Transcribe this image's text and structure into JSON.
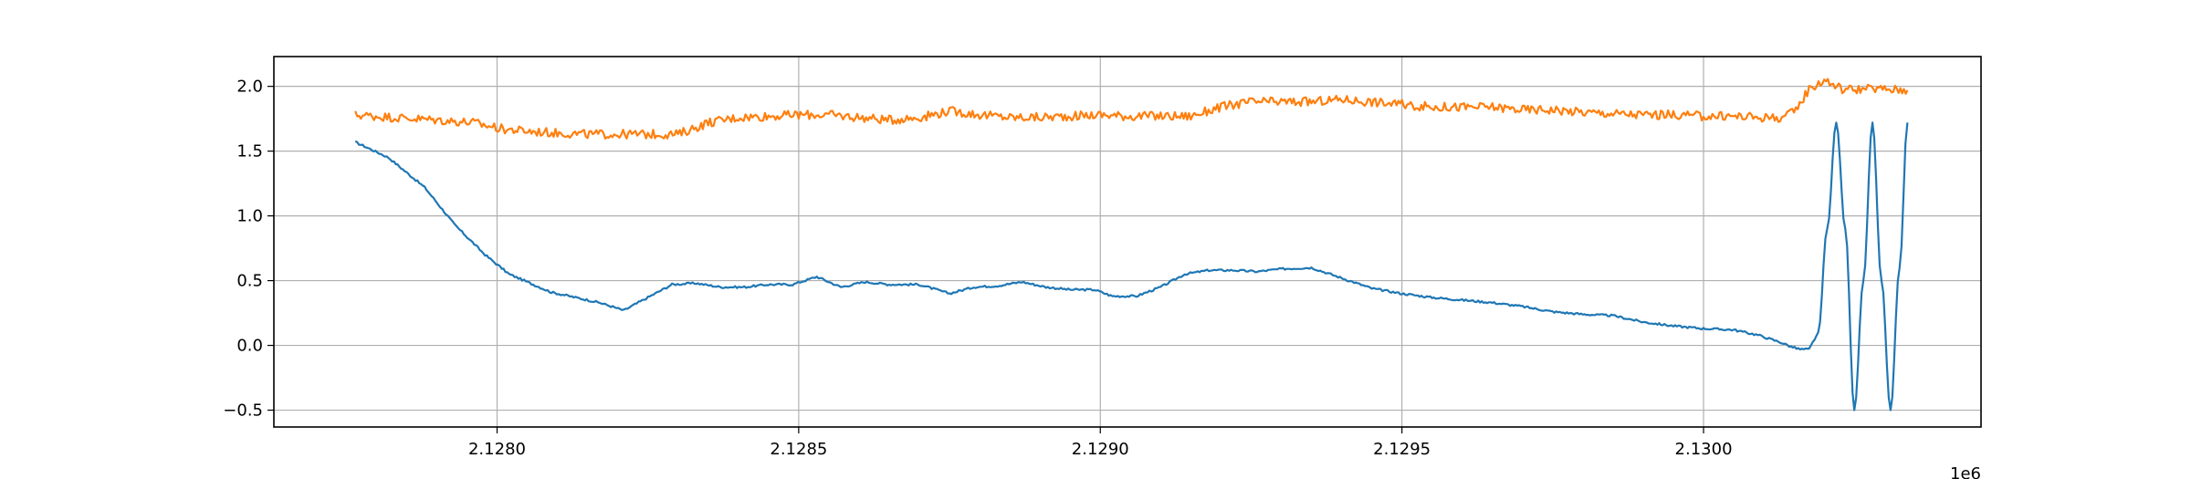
{
  "chart_data": {
    "type": "line",
    "title": "",
    "xlabel": "",
    "ylabel": "",
    "x_offset_label": "1e6",
    "xlim": [
      2127630,
      2130460
    ],
    "ylim": [
      -0.63,
      2.23
    ],
    "grid": true,
    "x_ticks": [
      {
        "value": 2128000,
        "label": "2.1280"
      },
      {
        "value": 2128500,
        "label": "2.1285"
      },
      {
        "value": 2129000,
        "label": "2.1290"
      },
      {
        "value": 2129500,
        "label": "2.1295"
      },
      {
        "value": 2130000,
        "label": "2.1300"
      }
    ],
    "y_ticks": [
      {
        "value": -0.5,
        "label": "−0.5"
      },
      {
        "value": 0.0,
        "label": "0.0"
      },
      {
        "value": 0.5,
        "label": "0.5"
      },
      {
        "value": 1.0,
        "label": "1.0"
      },
      {
        "value": 1.5,
        "label": "1.5"
      },
      {
        "value": 2.0,
        "label": "2.0"
      }
    ],
    "colors": {
      "series_1": "#1f77b4",
      "series_2": "#ff7f0e",
      "grid": "#b0b0b0",
      "axes": "#000000"
    },
    "series": [
      {
        "color": "#1f77b4",
        "noise": 0.008,
        "x": [
          2127765,
          2127820,
          2127880,
          2127930,
          2127980,
          2128020,
          2128060,
          2128090,
          2128130,
          2128170,
          2128210,
          2128250,
          2128290,
          2128330,
          2128370,
          2128410,
          2128450,
          2128490,
          2128530,
          2128570,
          2128610,
          2128650,
          2128700,
          2128750,
          2128790,
          2128830,
          2128870,
          2128910,
          2128950,
          2128990,
          2129020,
          2129060,
          2129100,
          2129140,
          2129180,
          2129220,
          2129260,
          2129300,
          2129350,
          2129400,
          2129450,
          2129500,
          2129550,
          2129600,
          2129650,
          2129700,
          2129750,
          2129800,
          2129850,
          2129900,
          2129950,
          2130000,
          2130050,
          2130090,
          2130130,
          2130145,
          2130160,
          2130175,
          2130190,
          2130205,
          2130220,
          2130235,
          2130250,
          2130265,
          2130280,
          2130295,
          2130310,
          2130325,
          2130338
        ],
        "y": [
          1.57,
          1.45,
          1.22,
          0.93,
          0.7,
          0.55,
          0.47,
          0.41,
          0.37,
          0.33,
          0.27,
          0.37,
          0.47,
          0.48,
          0.45,
          0.45,
          0.47,
          0.47,
          0.53,
          0.45,
          0.49,
          0.47,
          0.47,
          0.4,
          0.45,
          0.46,
          0.49,
          0.45,
          0.43,
          0.43,
          0.38,
          0.38,
          0.45,
          0.55,
          0.58,
          0.58,
          0.57,
          0.59,
          0.6,
          0.52,
          0.44,
          0.4,
          0.37,
          0.35,
          0.33,
          0.3,
          0.26,
          0.24,
          0.23,
          0.18,
          0.15,
          0.13,
          0.12,
          0.08,
          0.02,
          -0.01,
          -0.03,
          -0.03,
          0.1,
          0.9,
          1.72,
          0.9,
          -0.5,
          0.5,
          1.72,
          0.5,
          -0.5,
          0.6,
          1.72
        ]
      },
      {
        "color": "#ff7f0e",
        "noise": 0.035,
        "x": [
          2127765,
          2127830,
          2127900,
          2127960,
          2128010,
          2128060,
          2128100,
          2128150,
          2128200,
          2128250,
          2128300,
          2128350,
          2128400,
          2128450,
          2128500,
          2128550,
          2128600,
          2128650,
          2128700,
          2128750,
          2128800,
          2128850,
          2128900,
          2128950,
          2129000,
          2129050,
          2129100,
          2129150,
          2129200,
          2129250,
          2129300,
          2129350,
          2129400,
          2129450,
          2129500,
          2129550,
          2129600,
          2129650,
          2129700,
          2129750,
          2129800,
          2129850,
          2129900,
          2129950,
          2130000,
          2130050,
          2130100,
          2130130,
          2130150,
          2130175,
          2130200,
          2130230,
          2130260,
          2130300,
          2130338
        ],
        "y": [
          1.78,
          1.76,
          1.74,
          1.72,
          1.67,
          1.65,
          1.64,
          1.63,
          1.63,
          1.63,
          1.63,
          1.72,
          1.76,
          1.77,
          1.78,
          1.78,
          1.76,
          1.74,
          1.76,
          1.81,
          1.78,
          1.76,
          1.76,
          1.77,
          1.78,
          1.77,
          1.77,
          1.77,
          1.84,
          1.88,
          1.88,
          1.88,
          1.9,
          1.88,
          1.86,
          1.84,
          1.84,
          1.84,
          1.82,
          1.82,
          1.8,
          1.79,
          1.78,
          1.78,
          1.77,
          1.77,
          1.76,
          1.76,
          1.8,
          1.98,
          2.05,
          1.98,
          1.98,
          1.98,
          1.97
        ]
      }
    ]
  }
}
